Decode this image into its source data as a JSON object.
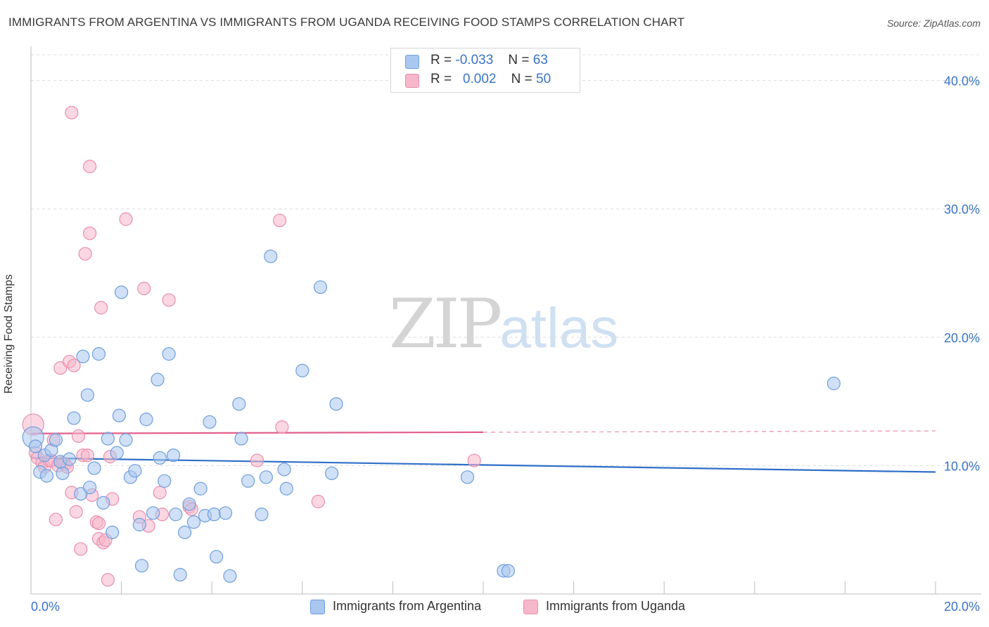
{
  "title": "IMMIGRANTS FROM ARGENTINA VS IMMIGRANTS FROM UGANDA RECEIVING FOOD STAMPS CORRELATION CHART",
  "source": "Source: ZipAtlas.com",
  "watermark": {
    "zip": "ZIP",
    "atlas": "atlas"
  },
  "legend": {
    "rows": [
      {
        "r_label": "R =",
        "r_value": "-0.033",
        "n_label": "N =",
        "n_value": "63"
      },
      {
        "r_label": "R =",
        "r_value": "0.002",
        "n_label": "N =",
        "n_value": "50"
      }
    ]
  },
  "colors": {
    "argentina_fill": "#a9c7ef",
    "argentina_stroke": "#6f9fdd",
    "argentina_line": "#2f6fc9",
    "uganda_fill": "#f6b7cb",
    "uganda_stroke": "#ea8fae",
    "uganda_line": "#e25f8c",
    "grid": "#dcdcdc",
    "tick_label": "#3a73c6"
  },
  "chart_data": {
    "type": "scatter",
    "title": "IMMIGRANTS FROM ARGENTINA VS IMMIGRANTS FROM UGANDA RECEIVING FOOD STAMPS CORRELATION CHART",
    "xlabel": "",
    "ylabel": "Receiving Food Stamps",
    "xlim": [
      0,
      20
    ],
    "ylim": [
      0,
      42
    ],
    "x_tick_labels": [
      "0.0%",
      "20.0%"
    ],
    "y_ticks": [
      10,
      20,
      30,
      40
    ],
    "y_tick_labels": [
      "10.0%",
      "20.0%",
      "30.0%",
      "40.0%"
    ],
    "grid": true,
    "legend_position": "bottom",
    "series": [
      {
        "name": "Immigrants from Argentina",
        "trend": {
          "x": [
            0,
            20
          ],
          "y": [
            10.6,
            9.5
          ],
          "solid_until": 20
        },
        "points": [
          [
            0.05,
            12.2
          ],
          [
            0.1,
            11.5
          ],
          [
            0.2,
            9.5
          ],
          [
            0.3,
            10.8
          ],
          [
            0.35,
            9.2
          ],
          [
            0.45,
            11.2
          ],
          [
            0.55,
            12.0
          ],
          [
            0.7,
            9.4
          ],
          [
            0.65,
            10.3
          ],
          [
            0.85,
            10.5
          ],
          [
            0.95,
            13.7
          ],
          [
            1.1,
            7.8
          ],
          [
            1.15,
            18.5
          ],
          [
            1.25,
            15.5
          ],
          [
            1.3,
            8.3
          ],
          [
            1.4,
            9.8
          ],
          [
            1.5,
            18.7
          ],
          [
            1.6,
            7.1
          ],
          [
            1.7,
            12.1
          ],
          [
            1.8,
            4.8
          ],
          [
            1.9,
            11.0
          ],
          [
            1.95,
            13.9
          ],
          [
            2.0,
            23.5
          ],
          [
            2.1,
            12.0
          ],
          [
            2.2,
            9.1
          ],
          [
            2.3,
            9.6
          ],
          [
            2.4,
            5.4
          ],
          [
            2.45,
            2.2
          ],
          [
            2.55,
            13.6
          ],
          [
            2.7,
            6.3
          ],
          [
            2.8,
            16.7
          ],
          [
            2.85,
            10.6
          ],
          [
            2.95,
            8.8
          ],
          [
            3.05,
            18.7
          ],
          [
            3.15,
            10.8
          ],
          [
            3.2,
            6.2
          ],
          [
            3.3,
            1.5
          ],
          [
            3.4,
            4.8
          ],
          [
            3.5,
            7.0
          ],
          [
            3.6,
            5.6
          ],
          [
            3.75,
            8.2
          ],
          [
            3.85,
            6.1
          ],
          [
            4.05,
            6.2
          ],
          [
            3.95,
            13.4
          ],
          [
            4.1,
            2.9
          ],
          [
            4.3,
            6.3
          ],
          [
            4.4,
            1.4
          ],
          [
            4.6,
            14.8
          ],
          [
            4.65,
            12.1
          ],
          [
            4.8,
            8.8
          ],
          [
            5.1,
            6.2
          ],
          [
            5.2,
            9.1
          ],
          [
            5.3,
            26.3
          ],
          [
            5.6,
            9.7
          ],
          [
            5.65,
            8.2
          ],
          [
            6.0,
            17.4
          ],
          [
            6.4,
            23.9
          ],
          [
            6.65,
            9.4
          ],
          [
            6.75,
            14.8
          ],
          [
            9.65,
            9.1
          ],
          [
            10.45,
            1.8
          ],
          [
            10.55,
            1.8
          ],
          [
            17.75,
            16.4
          ]
        ]
      },
      {
        "name": "Immigrants from Uganda",
        "trend": {
          "x": [
            0,
            20
          ],
          "y": [
            12.5,
            12.7
          ],
          "solid_until": 10
        },
        "points": [
          [
            0.05,
            13.2
          ],
          [
            0.1,
            11.0
          ],
          [
            0.15,
            10.6
          ],
          [
            0.25,
            10.2
          ],
          [
            0.3,
            9.9
          ],
          [
            0.4,
            10.4
          ],
          [
            0.45,
            10.4
          ],
          [
            0.5,
            12.0
          ],
          [
            0.55,
            5.8
          ],
          [
            0.6,
            10.0
          ],
          [
            0.65,
            17.6
          ],
          [
            0.7,
            10.2
          ],
          [
            0.75,
            10.1
          ],
          [
            0.8,
            9.9
          ],
          [
            0.85,
            18.1
          ],
          [
            0.9,
            7.9
          ],
          [
            0.9,
            37.5
          ],
          [
            0.95,
            17.8
          ],
          [
            1.0,
            6.4
          ],
          [
            1.05,
            12.3
          ],
          [
            1.1,
            3.5
          ],
          [
            1.15,
            10.8
          ],
          [
            1.2,
            26.5
          ],
          [
            1.25,
            10.8
          ],
          [
            1.3,
            33.3
          ],
          [
            1.3,
            28.1
          ],
          [
            1.35,
            7.7
          ],
          [
            1.45,
            5.6
          ],
          [
            1.5,
            4.3
          ],
          [
            1.5,
            5.5
          ],
          [
            1.55,
            22.3
          ],
          [
            1.6,
            4.0
          ],
          [
            1.65,
            4.2
          ],
          [
            1.7,
            1.1
          ],
          [
            1.75,
            10.7
          ],
          [
            1.8,
            7.4
          ],
          [
            2.1,
            29.2
          ],
          [
            2.4,
            6.0
          ],
          [
            2.5,
            23.8
          ],
          [
            2.6,
            5.3
          ],
          [
            2.85,
            7.9
          ],
          [
            2.9,
            6.2
          ],
          [
            3.05,
            22.9
          ],
          [
            3.5,
            6.8
          ],
          [
            3.55,
            6.6
          ],
          [
            5.0,
            10.4
          ],
          [
            5.5,
            29.1
          ],
          [
            5.55,
            13.0
          ],
          [
            6.35,
            7.2
          ],
          [
            9.8,
            10.4
          ]
        ]
      }
    ]
  }
}
